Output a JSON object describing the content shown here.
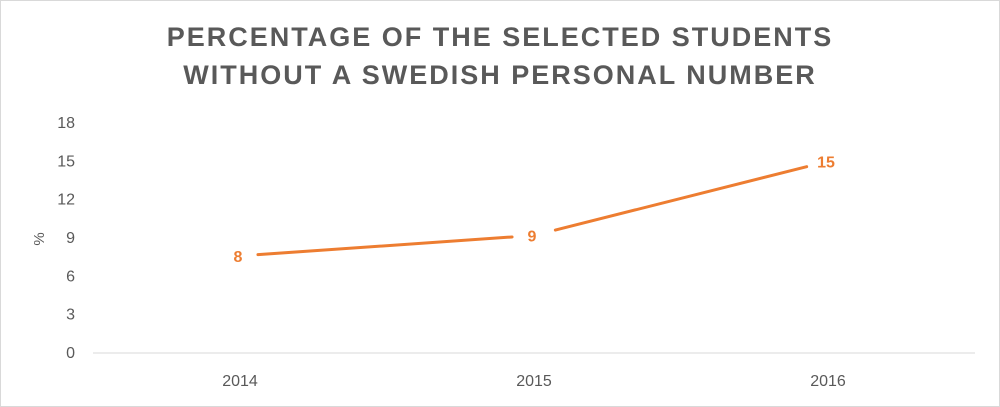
{
  "chart_data": {
    "type": "line",
    "title_lines": [
      "PERCENTAGE OF THE SELECTED STUDENTS",
      "WITHOUT A SWEDISH PERSONAL NUMBER"
    ],
    "x": [
      "2014",
      "2015",
      "2016"
    ],
    "series": [
      {
        "values": [
          7.6,
          9.2,
          15.0
        ],
        "data_labels": [
          "8",
          "9",
          "15"
        ]
      }
    ],
    "ylabel": "%",
    "xlabel": "",
    "ylim": [
      0,
      18
    ],
    "yticks": [
      "0",
      "3",
      "6",
      "9",
      "12",
      "15",
      "18"
    ],
    "grid": false,
    "legend": "none",
    "colors": {
      "line": "#ed7d31",
      "text": "#595959",
      "axis": "#d9d9d9"
    }
  }
}
